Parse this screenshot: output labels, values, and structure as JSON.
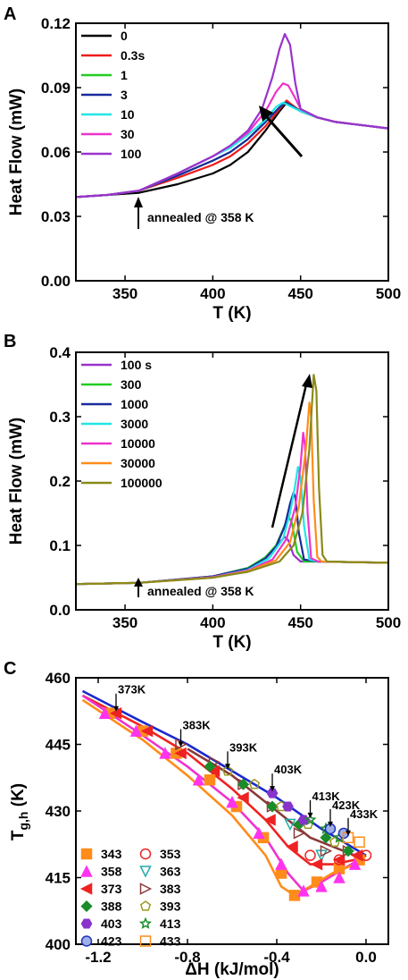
{
  "chart_data": [
    {
      "panel": "A",
      "type": "line",
      "xlabel": "T (K)",
      "ylabel": "Heat Flow (mW)",
      "xlim": [
        322,
        500
      ],
      "ylim": [
        0.0,
        0.12
      ],
      "xticks": [
        350,
        400,
        450,
        500
      ],
      "yticks": [
        0.0,
        0.03,
        0.06,
        0.09,
        0.12
      ],
      "ytick_labels": [
        "0.00",
        "0.03",
        "0.06",
        "0.09",
        "0.12"
      ],
      "grid": false,
      "legend_position": "top-left",
      "annotation": "annealed @ 358 K",
      "series": [
        {
          "name": "0",
          "color": "#000000",
          "x": [
            322,
            340,
            358,
            380,
            400,
            410,
            420,
            430,
            438,
            442,
            445,
            450,
            460,
            470,
            480,
            490,
            500
          ],
          "y": [
            0.039,
            0.04,
            0.041,
            0.045,
            0.05,
            0.054,
            0.06,
            0.07,
            0.079,
            0.083,
            0.082,
            0.079,
            0.076,
            0.074,
            0.073,
            0.072,
            0.071
          ]
        },
        {
          "name": "0.3s",
          "color": "#ee1c1c",
          "x": [
            322,
            340,
            358,
            380,
            400,
            410,
            420,
            430,
            438,
            442,
            445,
            450,
            460,
            470,
            480,
            490,
            500
          ],
          "y": [
            0.039,
            0.04,
            0.042,
            0.048,
            0.054,
            0.058,
            0.064,
            0.072,
            0.08,
            0.084,
            0.082,
            0.079,
            0.076,
            0.074,
            0.073,
            0.072,
            0.071
          ]
        },
        {
          "name": "1",
          "color": "#22cc22",
          "x": [
            322,
            340,
            358,
            380,
            400,
            410,
            420,
            430,
            437,
            441,
            444,
            450,
            460,
            470,
            480,
            490,
            500
          ],
          "y": [
            0.039,
            0.04,
            0.042,
            0.049,
            0.056,
            0.06,
            0.066,
            0.074,
            0.08,
            0.083,
            0.082,
            0.079,
            0.076,
            0.074,
            0.073,
            0.072,
            0.071
          ]
        },
        {
          "name": "3",
          "color": "#1a2a9c",
          "x": [
            322,
            340,
            358,
            380,
            400,
            410,
            420,
            430,
            437,
            441,
            444,
            450,
            460,
            470,
            480,
            490,
            500
          ],
          "y": [
            0.039,
            0.04,
            0.042,
            0.049,
            0.056,
            0.06,
            0.066,
            0.074,
            0.08,
            0.083,
            0.082,
            0.079,
            0.076,
            0.074,
            0.073,
            0.072,
            0.071
          ]
        },
        {
          "name": "10",
          "color": "#22e5e5",
          "x": [
            322,
            340,
            358,
            380,
            400,
            410,
            420,
            430,
            436,
            440,
            445,
            450,
            460,
            470,
            480,
            490,
            500
          ],
          "y": [
            0.039,
            0.04,
            0.042,
            0.05,
            0.058,
            0.062,
            0.068,
            0.075,
            0.081,
            0.083,
            0.081,
            0.079,
            0.076,
            0.074,
            0.073,
            0.072,
            0.071
          ]
        },
        {
          "name": "30",
          "color": "#ee33cc",
          "x": [
            322,
            340,
            358,
            380,
            400,
            410,
            420,
            430,
            436,
            440,
            443,
            447,
            450,
            460,
            470,
            480,
            490,
            500
          ],
          "y": [
            0.039,
            0.04,
            0.042,
            0.05,
            0.058,
            0.063,
            0.069,
            0.079,
            0.088,
            0.092,
            0.091,
            0.085,
            0.08,
            0.076,
            0.074,
            0.073,
            0.072,
            0.071
          ]
        },
        {
          "name": "100",
          "color": "#9933cc",
          "x": [
            322,
            340,
            358,
            380,
            400,
            410,
            420,
            428,
            434,
            438,
            441,
            444,
            447,
            450,
            460,
            470,
            480,
            490,
            500
          ],
          "y": [
            0.039,
            0.04,
            0.042,
            0.05,
            0.058,
            0.063,
            0.07,
            0.08,
            0.095,
            0.108,
            0.115,
            0.11,
            0.092,
            0.08,
            0.076,
            0.074,
            0.073,
            0.072,
            0.071
          ]
        }
      ]
    },
    {
      "panel": "B",
      "type": "line",
      "xlabel": "T (K)",
      "ylabel": "Heat Flow (mW)",
      "xlim": [
        322,
        500
      ],
      "ylim": [
        0.0,
        0.4
      ],
      "xticks": [
        350,
        400,
        450,
        500
      ],
      "yticks": [
        0.0,
        0.1,
        0.2,
        0.3,
        0.4
      ],
      "ytick_labels": [
        "0.0",
        "0.1",
        "0.2",
        "0.3",
        "0.4"
      ],
      "grid": false,
      "legend_position": "top-left",
      "annotation": "annealed @ 358 K",
      "series": [
        {
          "name": "100 s",
          "color": "#9933cc",
          "x": [
            322,
            358,
            400,
            420,
            430,
            435,
            438,
            441,
            443,
            446,
            450,
            460,
            480,
            500
          ],
          "y": [
            0.04,
            0.042,
            0.052,
            0.065,
            0.08,
            0.095,
            0.105,
            0.113,
            0.108,
            0.085,
            0.075,
            0.075,
            0.074,
            0.073
          ]
        },
        {
          "name": "300",
          "color": "#22cc22",
          "x": [
            322,
            358,
            400,
            420,
            430,
            436,
            440,
            443,
            445,
            448,
            452,
            460,
            480,
            500
          ],
          "y": [
            0.04,
            0.042,
            0.052,
            0.065,
            0.082,
            0.1,
            0.125,
            0.146,
            0.135,
            0.09,
            0.075,
            0.075,
            0.074,
            0.073
          ]
        },
        {
          "name": "1000",
          "color": "#1a2a9c",
          "x": [
            322,
            358,
            400,
            420,
            430,
            436,
            441,
            444,
            446,
            447,
            449,
            452,
            460,
            480,
            500
          ],
          "y": [
            0.04,
            0.042,
            0.052,
            0.064,
            0.08,
            0.098,
            0.13,
            0.165,
            0.182,
            0.175,
            0.12,
            0.078,
            0.075,
            0.074,
            0.073
          ]
        },
        {
          "name": "3000",
          "color": "#22e5e5",
          "x": [
            322,
            358,
            400,
            420,
            432,
            440,
            444,
            447,
            448.5,
            450,
            452,
            455,
            460,
            480,
            500
          ],
          "y": [
            0.04,
            0.042,
            0.051,
            0.062,
            0.08,
            0.11,
            0.15,
            0.195,
            0.222,
            0.205,
            0.13,
            0.078,
            0.075,
            0.074,
            0.073
          ]
        },
        {
          "name": "10000",
          "color": "#ee33cc",
          "x": [
            322,
            358,
            400,
            420,
            434,
            442,
            447,
            450,
            451.5,
            452.5,
            454,
            456,
            460,
            480,
            500
          ],
          "y": [
            0.04,
            0.042,
            0.051,
            0.061,
            0.078,
            0.11,
            0.16,
            0.225,
            0.275,
            0.255,
            0.15,
            0.08,
            0.075,
            0.074,
            0.073
          ]
        },
        {
          "name": "30000",
          "color": "#ff8c1a",
          "x": [
            322,
            358,
            400,
            420,
            436,
            444,
            449,
            453,
            455,
            456,
            457.5,
            459.5,
            462,
            480,
            500
          ],
          "y": [
            0.04,
            0.042,
            0.05,
            0.06,
            0.077,
            0.105,
            0.16,
            0.25,
            0.322,
            0.3,
            0.17,
            0.082,
            0.075,
            0.074,
            0.073
          ]
        },
        {
          "name": "100000",
          "color": "#8a8a1a",
          "x": [
            322,
            358,
            400,
            420,
            438,
            446,
            451,
            455,
            457.5,
            459,
            460.5,
            462.5,
            465,
            480,
            500
          ],
          "y": [
            0.04,
            0.042,
            0.05,
            0.059,
            0.075,
            0.1,
            0.15,
            0.25,
            0.365,
            0.34,
            0.19,
            0.085,
            0.075,
            0.074,
            0.073
          ]
        }
      ]
    },
    {
      "panel": "C",
      "type": "scatter",
      "xlabel": "ΔH (kJ/mol)",
      "ylabel": "T",
      "ylabel_sub": "g,h",
      "ylabel_unit": " (K)",
      "xlim": [
        -1.3,
        0.1
      ],
      "ylim": [
        400,
        460
      ],
      "xticks": [
        -1.2,
        -0.8,
        -0.4,
        0.0
      ],
      "xtick_labels": [
        "-1.2",
        "-0.8",
        "-0.4",
        "0.0"
      ],
      "yticks": [
        400,
        415,
        430,
        445,
        460
      ],
      "grid": false,
      "legend_position": "bottom-left",
      "annotations": [
        {
          "text": "373K",
          "x": -1.12,
          "y": 452
        },
        {
          "text": "383K",
          "x": -0.83,
          "y": 444
        },
        {
          "text": "393K",
          "x": -0.62,
          "y": 439
        },
        {
          "text": "403K",
          "x": -0.42,
          "y": 434
        },
        {
          "text": "413K",
          "x": -0.25,
          "y": 428
        },
        {
          "text": "423K",
          "x": -0.16,
          "y": 426
        },
        {
          "text": "433K",
          "x": -0.08,
          "y": 424
        }
      ],
      "fit_lines": [
        {
          "color": "#1a2acc",
          "x": [
            -1.27,
            -1.0,
            -0.8,
            -0.6,
            -0.4,
            -0.2,
            0.0
          ],
          "y": [
            457,
            450,
            445,
            439,
            433,
            426,
            420
          ]
        },
        {
          "color": "#ee2222",
          "x": [
            -1.27,
            -1.0,
            -0.8,
            -0.6,
            -0.45,
            -0.35,
            -0.25,
            -0.15,
            -0.05,
            0.0
          ],
          "y": [
            456,
            449,
            443,
            435,
            428,
            422,
            418,
            418,
            419,
            420
          ]
        },
        {
          "color": "#ee33cc",
          "x": [
            -1.27,
            -1.0,
            -0.8,
            -0.6,
            -0.45,
            -0.35,
            -0.28,
            -0.2,
            -0.1,
            0.0
          ],
          "y": [
            456,
            447,
            440,
            432,
            424,
            416,
            412,
            414,
            417,
            420
          ]
        },
        {
          "color": "#ff8c1a",
          "x": [
            -1.27,
            -1.0,
            -0.8,
            -0.6,
            -0.45,
            -0.38,
            -0.32,
            -0.25,
            -0.15,
            -0.05,
            0.0
          ],
          "y": [
            455,
            446,
            438,
            429,
            420,
            413,
            411,
            413,
            416,
            418,
            420
          ]
        },
        {
          "color": "#8b3a3a",
          "x": [
            -0.8,
            -0.6,
            -0.4,
            -0.25,
            -0.1,
            -0.05,
            0.0
          ],
          "y": [
            444,
            438,
            430,
            424,
            421,
            420,
            420
          ]
        }
      ],
      "series": [
        {
          "name": "343",
          "color": "#ff8c1a",
          "marker": "square",
          "x": [
            -1.15,
            -1.0,
            -0.85,
            -0.7,
            -0.58,
            -0.46,
            -0.38,
            -0.32,
            -0.22,
            -0.12,
            -0.03
          ],
          "y": [
            452,
            448,
            443,
            437,
            431,
            424,
            416,
            411,
            414,
            417,
            419
          ]
        },
        {
          "name": "353",
          "color": "#ee2222",
          "marker": "circle-open",
          "x": [
            -0.25,
            -0.12,
            0.0
          ],
          "y": [
            420,
            419,
            420
          ]
        },
        {
          "name": "358",
          "color": "#ff33ee",
          "marker": "triangle-up",
          "x": [
            -1.17,
            -1.03,
            -0.9,
            -0.75,
            -0.6,
            -0.48,
            -0.38,
            -0.28,
            -0.2,
            -0.12,
            -0.05
          ],
          "y": [
            452,
            448,
            443,
            437,
            432,
            425,
            418,
            412,
            413,
            415,
            418
          ]
        },
        {
          "name": "363",
          "color": "#22aaaa",
          "marker": "triangle-down-open",
          "x": [
            -0.34,
            -0.2
          ],
          "y": [
            427,
            420
          ]
        },
        {
          "name": "373",
          "color": "#ee2222",
          "marker": "triangle-left",
          "x": [
            -1.12,
            -0.98,
            -0.83,
            -0.68,
            -0.55,
            -0.43,
            -0.33,
            -0.22,
            -0.12,
            -0.04
          ],
          "y": [
            452,
            448,
            443,
            439,
            433,
            428,
            422,
            418,
            419,
            420
          ]
        },
        {
          "name": "383",
          "color": "#8b3a3a",
          "marker": "triangle-right-open",
          "x": [
            -0.83,
            -0.68,
            -0.55,
            -0.42,
            -0.3,
            -0.18,
            -0.08
          ],
          "y": [
            445,
            441,
            436,
            431,
            425,
            421,
            421
          ]
        },
        {
          "name": "388",
          "color": "#1a8c2a",
          "marker": "diamond",
          "x": [
            -0.7,
            -0.55,
            -0.42,
            -0.3,
            -0.18,
            -0.08
          ],
          "y": [
            440,
            436,
            431,
            427,
            424,
            421
          ]
        },
        {
          "name": "393",
          "color": "#999922",
          "marker": "pentagon-open",
          "x": [
            -0.62,
            -0.5,
            -0.38,
            -0.26,
            -0.14
          ],
          "y": [
            439,
            436,
            431,
            427,
            423
          ]
        },
        {
          "name": "403",
          "color": "#8833cc",
          "marker": "hexagon",
          "x": [
            -0.42,
            -0.35,
            -0.28
          ],
          "y": [
            434,
            431,
            428
          ]
        },
        {
          "name": "413",
          "color": "#1a8c2a",
          "marker": "star-open",
          "x": [
            -0.25,
            -0.18,
            -0.12
          ],
          "y": [
            428,
            426,
            424
          ]
        },
        {
          "name": "423",
          "color": "#2233bb",
          "marker": "circle-half",
          "x": [
            -0.16,
            -0.1
          ],
          "y": [
            426,
            425
          ]
        },
        {
          "name": "433",
          "color": "#ff8c1a",
          "marker": "square-open",
          "x": [
            -0.08,
            -0.03
          ],
          "y": [
            424,
            423
          ]
        }
      ]
    }
  ],
  "panels": {
    "a": {
      "letter": "A"
    },
    "b": {
      "letter": "B"
    },
    "c": {
      "letter": "C"
    }
  }
}
